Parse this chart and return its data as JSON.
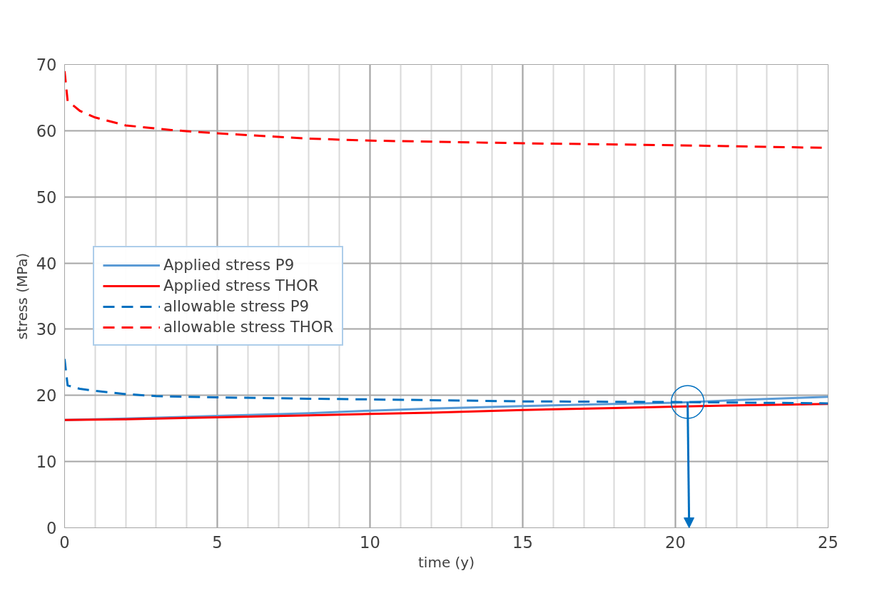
{
  "chart_data": {
    "type": "line",
    "xlabel": "time (y)",
    "ylabel": "stress (MPa)",
    "xlim": [
      0,
      25
    ],
    "ylim": [
      0,
      70
    ],
    "xticks": [
      0,
      5,
      10,
      15,
      20,
      25
    ],
    "yticks": [
      0,
      10,
      20,
      30,
      40,
      50,
      60,
      70
    ],
    "grid": true,
    "legend": "left",
    "series": [
      {
        "name": "Applied stress P9",
        "color": "#5b9bd5",
        "line_style": "solid",
        "x": [
          0,
          2,
          5,
          8,
          10,
          12,
          15,
          18,
          20,
          22,
          25
        ],
        "values": [
          16.3,
          16.5,
          16.9,
          17.3,
          17.7,
          18.0,
          18.4,
          18.7,
          18.9,
          19.3,
          19.8
        ]
      },
      {
        "name": "Applied stress THOR",
        "color": "#ff0000",
        "line_style": "solid",
        "x": [
          0,
          2,
          5,
          8,
          10,
          12,
          15,
          18,
          20,
          22,
          25
        ],
        "values": [
          16.3,
          16.4,
          16.7,
          17.0,
          17.2,
          17.4,
          17.8,
          18.1,
          18.3,
          18.5,
          18.7
        ]
      },
      {
        "name": "allowable stress P9",
        "color": "#0070c0",
        "line_style": "dashed",
        "x": [
          0,
          0.1,
          0.5,
          1,
          2,
          3,
          5,
          8,
          10,
          15,
          20,
          25
        ],
        "values": [
          25.5,
          21.5,
          21.0,
          20.7,
          20.2,
          19.9,
          19.7,
          19.5,
          19.4,
          19.1,
          19.0,
          18.8
        ]
      },
      {
        "name": "allowable stress THOR",
        "color": "#ff0000",
        "line_style": "dashed",
        "x": [
          0,
          0.1,
          0.5,
          1,
          2,
          3.5,
          5,
          8,
          10,
          15,
          20,
          25
        ],
        "values": [
          69,
          64.5,
          63,
          62,
          60.8,
          60.1,
          59.6,
          58.8,
          58.5,
          58.1,
          57.8,
          57.4
        ]
      },
      {
        "type": "scatter",
        "marker": "circle",
        "color": "#0070c0",
        "x": [
          20.4
        ],
        "values": [
          19.0
        ]
      }
    ]
  }
}
